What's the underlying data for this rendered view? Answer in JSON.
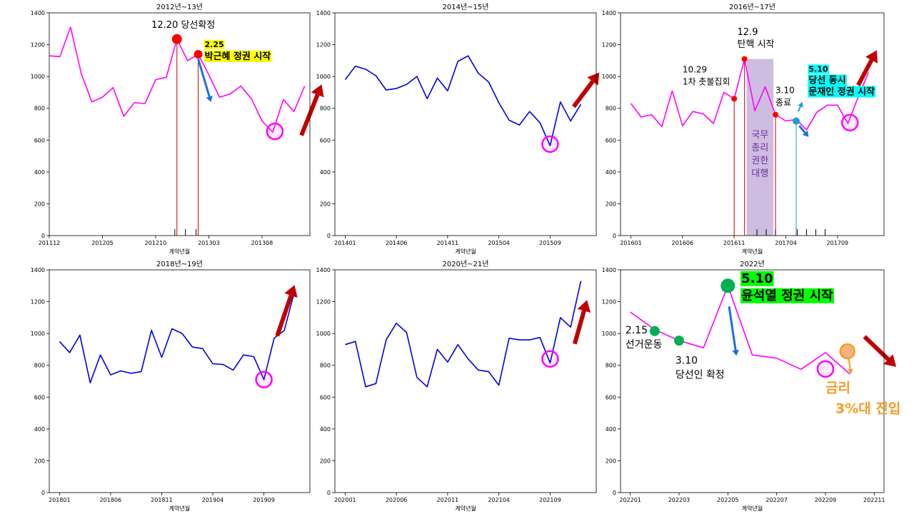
{
  "chart_data": [
    {
      "type": "line",
      "title": "2012년~13년",
      "xlabel": "계약년월",
      "ylim": [
        0,
        1400
      ],
      "yticks": [
        0,
        200,
        400,
        600,
        800,
        1000,
        1200,
        1400
      ],
      "xlim": [
        0,
        24.5
      ],
      "xtick_labels": [
        {
          "i": 0,
          "label": "201112"
        },
        {
          "i": 5,
          "label": "201205"
        },
        {
          "i": 10,
          "label": "201210"
        },
        {
          "i": 15,
          "label": "201303"
        },
        {
          "i": 20,
          "label": "201308"
        }
      ],
      "series": [
        {
          "color": "#ff00ff",
          "values": [
            1130,
            1125,
            1310,
            1020,
            840,
            870,
            930,
            750,
            835,
            830,
            980,
            995,
            1235,
            1100,
            1140,
            1010,
            870,
            890,
            940,
            860,
            720,
            650,
            855,
            780,
            940
          ]
        }
      ],
      "minor_ticks": [
        11.8,
        12.8,
        13.8
      ],
      "vlines": [
        {
          "i": 12,
          "value": 1235,
          "color": "#cc0000"
        },
        {
          "i": 14,
          "value": 1140,
          "color": "#cc0000"
        }
      ],
      "markers": [
        {
          "i": 12,
          "value": 1235,
          "color": "#ff0000",
          "r": 7
        },
        {
          "i": 14,
          "value": 1140,
          "color": "#ff0000",
          "r": 6
        }
      ],
      "circles": [
        {
          "i": 21.2,
          "value": 655,
          "color": "#ff00ff"
        }
      ],
      "arrows": [
        {
          "from": [
            14,
            1110
          ],
          "to": [
            15.2,
            840
          ],
          "color": "#1a6fe0",
          "width": 3
        },
        {
          "from": [
            23.7,
            630
          ],
          "to": [
            25.6,
            950
          ],
          "color": "#c00000",
          "width": 6
        }
      ],
      "annotations": [
        {
          "lines": [
            "12.20 당선확정"
          ],
          "at": [
            12.6,
            1305
          ],
          "size": 13,
          "color": "#000000",
          "weight": "normal",
          "anchor": "middle"
        },
        {
          "lines": [
            "2.25",
            "박근혜 정권 시작"
          ],
          "sizes": [
            11,
            13
          ],
          "at": [
            14.6,
            1185
          ],
          "color": "#000000",
          "weight": "bold",
          "anchor": "start",
          "bg": "#ffff00"
        }
      ]
    },
    {
      "type": "line",
      "title": "2014년~15년",
      "xlabel": "계약년월",
      "ylim": [
        0,
        1400
      ],
      "yticks": [
        0,
        200,
        400,
        600,
        800,
        1000,
        1200,
        1400
      ],
      "xlim": [
        -1,
        24.5
      ],
      "xtick_labels": [
        {
          "i": 0,
          "label": "201401"
        },
        {
          "i": 5,
          "label": "201406"
        },
        {
          "i": 10,
          "label": "201411"
        },
        {
          "i": 15,
          "label": "201504"
        },
        {
          "i": 20,
          "label": "201509"
        }
      ],
      "series": [
        {
          "color": "#0000e0",
          "values": [
            980,
            1065,
            1045,
            1005,
            915,
            925,
            950,
            1000,
            860,
            990,
            910,
            1095,
            1130,
            1020,
            965,
            835,
            725,
            695,
            780,
            710,
            565,
            840,
            720,
            825
          ]
        }
      ],
      "circles": [
        {
          "i": 20,
          "value": 575,
          "color": "#ff00ff"
        }
      ],
      "arrows": [
        {
          "from": [
            22.3,
            810
          ],
          "to": [
            24.8,
            1025
          ],
          "color": "#c00000",
          "width": 6
        }
      ]
    },
    {
      "type": "line",
      "title": "2016년~17년",
      "xlabel": "계약년월",
      "ylim": [
        0,
        1400
      ],
      "yticks": [
        0,
        200,
        400,
        600,
        800,
        1000,
        1200,
        1400
      ],
      "xlim": [
        -1,
        24.5
      ],
      "xtick_labels": [
        {
          "i": 0,
          "label": "201601"
        },
        {
          "i": 5,
          "label": "201606"
        },
        {
          "i": 10,
          "label": "201611"
        },
        {
          "i": 15,
          "label": "201704"
        },
        {
          "i": 20,
          "label": "201709"
        }
      ],
      "series": [
        {
          "color": "#ff00ff",
          "values": [
            830,
            745,
            760,
            685,
            910,
            690,
            780,
            765,
            705,
            900,
            860,
            1110,
            785,
            935,
            760,
            720,
            730,
            665,
            775,
            820,
            820,
            705,
            870,
            1025
          ]
        }
      ],
      "shade": {
        "from": 11.2,
        "to": 13.8,
        "top": 1110,
        "color": "#c6b1dc"
      },
      "minor_ticks": [
        12.2,
        13.1,
        14.0,
        16.1,
        17.0,
        17.9,
        18.8
      ],
      "vlines": [
        {
          "i": 10,
          "value": 860,
          "color": "#cc0000"
        },
        {
          "i": 11,
          "value": 1105,
          "color": "#cc0000"
        },
        {
          "i": 14,
          "value": 760,
          "color": "#cc0000"
        },
        {
          "i": 16,
          "value": 720,
          "color": "#1a9fd0"
        }
      ],
      "markers": [
        {
          "i": 10,
          "value": 860,
          "color": "#ff0000",
          "r": 4
        },
        {
          "i": 11,
          "value": 1110,
          "color": "#ff0000",
          "r": 4
        },
        {
          "i": 14,
          "value": 760,
          "color": "#ff0000",
          "r": 4
        },
        {
          "i": 16,
          "value": 720,
          "color": "#1a9fd0",
          "r": 5
        }
      ],
      "circles": [
        {
          "i": 21.2,
          "value": 710,
          "color": "#ff00ff"
        }
      ],
      "arrows": [
        {
          "from": [
            16.2,
            780
          ],
          "to": [
            16.6,
            840
          ],
          "color": "#1a9fd0",
          "width": 2
        },
        {
          "from": [
            16.3,
            690
          ],
          "to": [
            17.2,
            620
          ],
          "color": "#1a6fe0",
          "width": 3
        },
        {
          "from": [
            22.0,
            945
          ],
          "to": [
            23.8,
            1165
          ],
          "color": "#c00000",
          "width": 6
        }
      ],
      "annotations": [
        {
          "lines": [
            "12.9",
            "탄핵 시작"
          ],
          "at": [
            10.3,
            1260
          ],
          "size": 13,
          "color": "#000000",
          "weight": "normal",
          "anchor": "start",
          "line_height": 17
        },
        {
          "lines": [
            "10.29",
            "1차 촛불집회"
          ],
          "at": [
            5.0,
            1025
          ],
          "size": 12,
          "color": "#000000",
          "weight": "normal",
          "anchor": "start",
          "line_height": 17
        },
        {
          "lines": [
            "3.10",
            "종료"
          ],
          "at": [
            14.0,
            895
          ],
          "size": 12,
          "color": "#000000",
          "weight": "normal",
          "anchor": "start",
          "line_height": 17
        },
        {
          "lines": [
            "5.10",
            "당선 동시",
            "문재인 정권 시작"
          ],
          "sizes": [
            11,
            13,
            13
          ],
          "at": [
            17.2,
            1030
          ],
          "color": "#000000",
          "weight": "bold",
          "anchor": "start",
          "bg": "#00ffff",
          "line_height": 16
        },
        {
          "lines": [
            "국무",
            "총리",
            "권한",
            "대행"
          ],
          "at": [
            12.5,
            615
          ],
          "size": 13,
          "color": "#7030a0",
          "weight": "normal",
          "anchor": "middle",
          "line_height": 18
        }
      ]
    },
    {
      "type": "line",
      "title": "2018년~19년",
      "xlabel": "계약년월",
      "ylim": [
        0,
        1400
      ],
      "yticks": [
        0,
        200,
        400,
        600,
        800,
        1000,
        1200,
        1400
      ],
      "xlim": [
        -1,
        24.5
      ],
      "xtick_labels": [
        {
          "i": 0,
          "label": "201801"
        },
        {
          "i": 5,
          "label": "201806"
        },
        {
          "i": 10,
          "label": "201811"
        },
        {
          "i": 15,
          "label": "201904"
        },
        {
          "i": 20,
          "label": "201909"
        }
      ],
      "series": [
        {
          "color": "#0000e0",
          "values": [
            950,
            880,
            990,
            690,
            865,
            740,
            765,
            750,
            760,
            1020,
            850,
            1030,
            1000,
            915,
            905,
            810,
            805,
            770,
            865,
            855,
            710,
            970,
            1020,
            1265
          ]
        }
      ],
      "circles": [
        {
          "i": 20,
          "value": 710,
          "color": "#ff00ff"
        }
      ],
      "arrows": [
        {
          "from": [
            21.3,
            985
          ],
          "to": [
            23.0,
            1305
          ],
          "color": "#c00000",
          "width": 6
        }
      ]
    },
    {
      "type": "line",
      "title": "2020년~21년",
      "xlabel": "계약년월",
      "ylim": [
        0,
        1400
      ],
      "yticks": [
        0,
        200,
        400,
        600,
        800,
        1000,
        1200,
        1400
      ],
      "xlim": [
        -1,
        24.5
      ],
      "xtick_labels": [
        {
          "i": 0,
          "label": "202001"
        },
        {
          "i": 5,
          "label": "202006"
        },
        {
          "i": 10,
          "label": "202011"
        },
        {
          "i": 15,
          "label": "202104"
        },
        {
          "i": 20,
          "label": "202109"
        }
      ],
      "series": [
        {
          "color": "#0000e0",
          "values": [
            930,
            950,
            665,
            685,
            960,
            1065,
            1005,
            725,
            665,
            900,
            820,
            930,
            840,
            770,
            760,
            675,
            970,
            960,
            960,
            975,
            815,
            1100,
            1040,
            1330
          ]
        }
      ],
      "circles": [
        {
          "i": 20,
          "value": 840,
          "color": "#ff00ff"
        }
      ],
      "arrows": [
        {
          "from": [
            22.4,
            935
          ],
          "to": [
            23.6,
            1210
          ],
          "color": "#c00000",
          "width": 6
        }
      ]
    },
    {
      "type": "line",
      "title": "2022년",
      "xlabel": "계약년월",
      "ylim": [
        0,
        1400
      ],
      "yticks": [
        0,
        200,
        400,
        600,
        800,
        1000,
        1200,
        1400
      ],
      "xlim": [
        -0.4,
        10.4
      ],
      "xtick_labels": [
        {
          "i": 0,
          "label": "202201"
        },
        {
          "i": 2,
          "label": "202203"
        },
        {
          "i": 4,
          "label": "202205"
        },
        {
          "i": 6,
          "label": "202207"
        },
        {
          "i": 8,
          "label": "202209"
        },
        {
          "i": 10,
          "label": "202211"
        }
      ],
      "series": [
        {
          "color": "#ff00ff",
          "values": [
            1135,
            1025,
            955,
            910,
            1300,
            865,
            845,
            775,
            880,
            745
          ]
        }
      ],
      "markers": [
        {
          "i": 1,
          "value": 1015,
          "color": "#00b050",
          "r": 7
        },
        {
          "i": 2,
          "value": 955,
          "color": "#00b050",
          "r": 7
        },
        {
          "i": 4,
          "value": 1300,
          "color": "#00b050",
          "r": 10
        },
        {
          "i": 8.9,
          "value": 888,
          "color": "#f4b183",
          "r": 10,
          "stroke": "#f79b24"
        }
      ],
      "circles": [
        {
          "i": 8.0,
          "value": 777,
          "color": "#ff00ff"
        }
      ],
      "arrows": [
        {
          "from": [
            4.05,
            1170
          ],
          "to": [
            4.35,
            860
          ],
          "color": "#1a6fe0",
          "width": 3
        },
        {
          "from": [
            8.95,
            840
          ],
          "to": [
            9.05,
            745
          ],
          "color": "#f79b24",
          "width": 2
        },
        {
          "from": [
            9.6,
            980
          ],
          "to": [
            10.9,
            790
          ],
          "color": "#c00000",
          "width": 6
        }
      ],
      "annotations": [
        {
          "lines": [
            "5.10",
            "윤석열 정권 시작"
          ],
          "at": [
            4.55,
            1320
          ],
          "size": 18,
          "color": "#000000",
          "weight": "bold",
          "anchor": "start",
          "bg": "#00ff00",
          "line_height": 24
        },
        {
          "lines": [
            "2.15",
            "선거운동"
          ],
          "at": [
            -0.2,
            1000
          ],
          "size": 14,
          "color": "#000000",
          "weight": "normal",
          "anchor": "start",
          "line_height": 20
        },
        {
          "lines": [
            "3.10",
            "당선인 확정"
          ],
          "at": [
            1.85,
            810
          ],
          "size": 14,
          "color": "#000000",
          "weight": "normal",
          "anchor": "start",
          "line_height": 20
        },
        {
          "lines": [
            "금리",
            "3%대 진입"
          ],
          "at": [
            8.0,
            630
          ],
          "size": 19,
          "color": "#f79b24",
          "weight": "bold",
          "anchor": "start",
          "line_height": 29,
          "indents": [
            0,
            14
          ]
        }
      ]
    }
  ]
}
